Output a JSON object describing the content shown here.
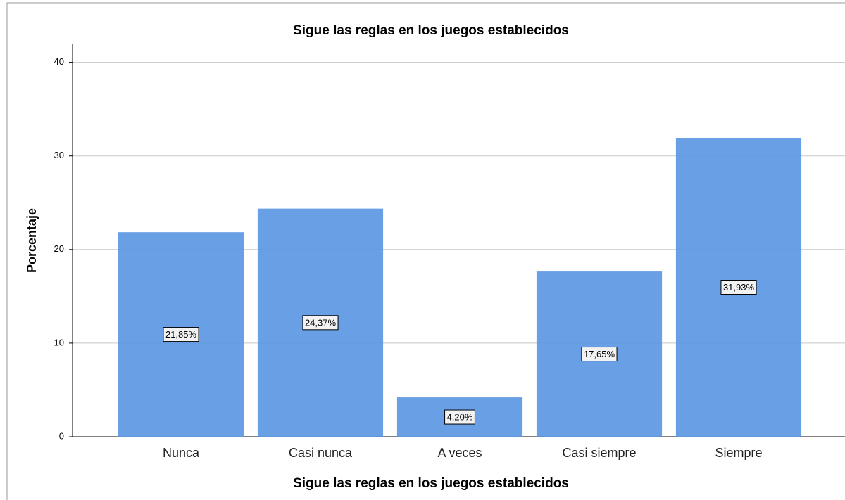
{
  "chart_data": {
    "type": "bar",
    "title": "Sigue las reglas en los juegos establecidos",
    "x_label": "Sigue las reglas en los juegos establecidos",
    "y_label": "Porcentaje",
    "categories": [
      "Nunca",
      "Casi nunca",
      "A veces",
      "Casi siempre",
      "Siempre"
    ],
    "values": [
      21.85,
      24.37,
      4.2,
      17.65,
      31.93
    ],
    "value_labels": [
      "21,85%",
      "24,37%",
      "4,20%",
      "17,65%",
      "31,93%"
    ],
    "color": "#5b97e3",
    "ylim": [
      0,
      42
    ],
    "yticks": [
      0,
      10,
      20,
      30,
      40
    ],
    "grid": true
  }
}
